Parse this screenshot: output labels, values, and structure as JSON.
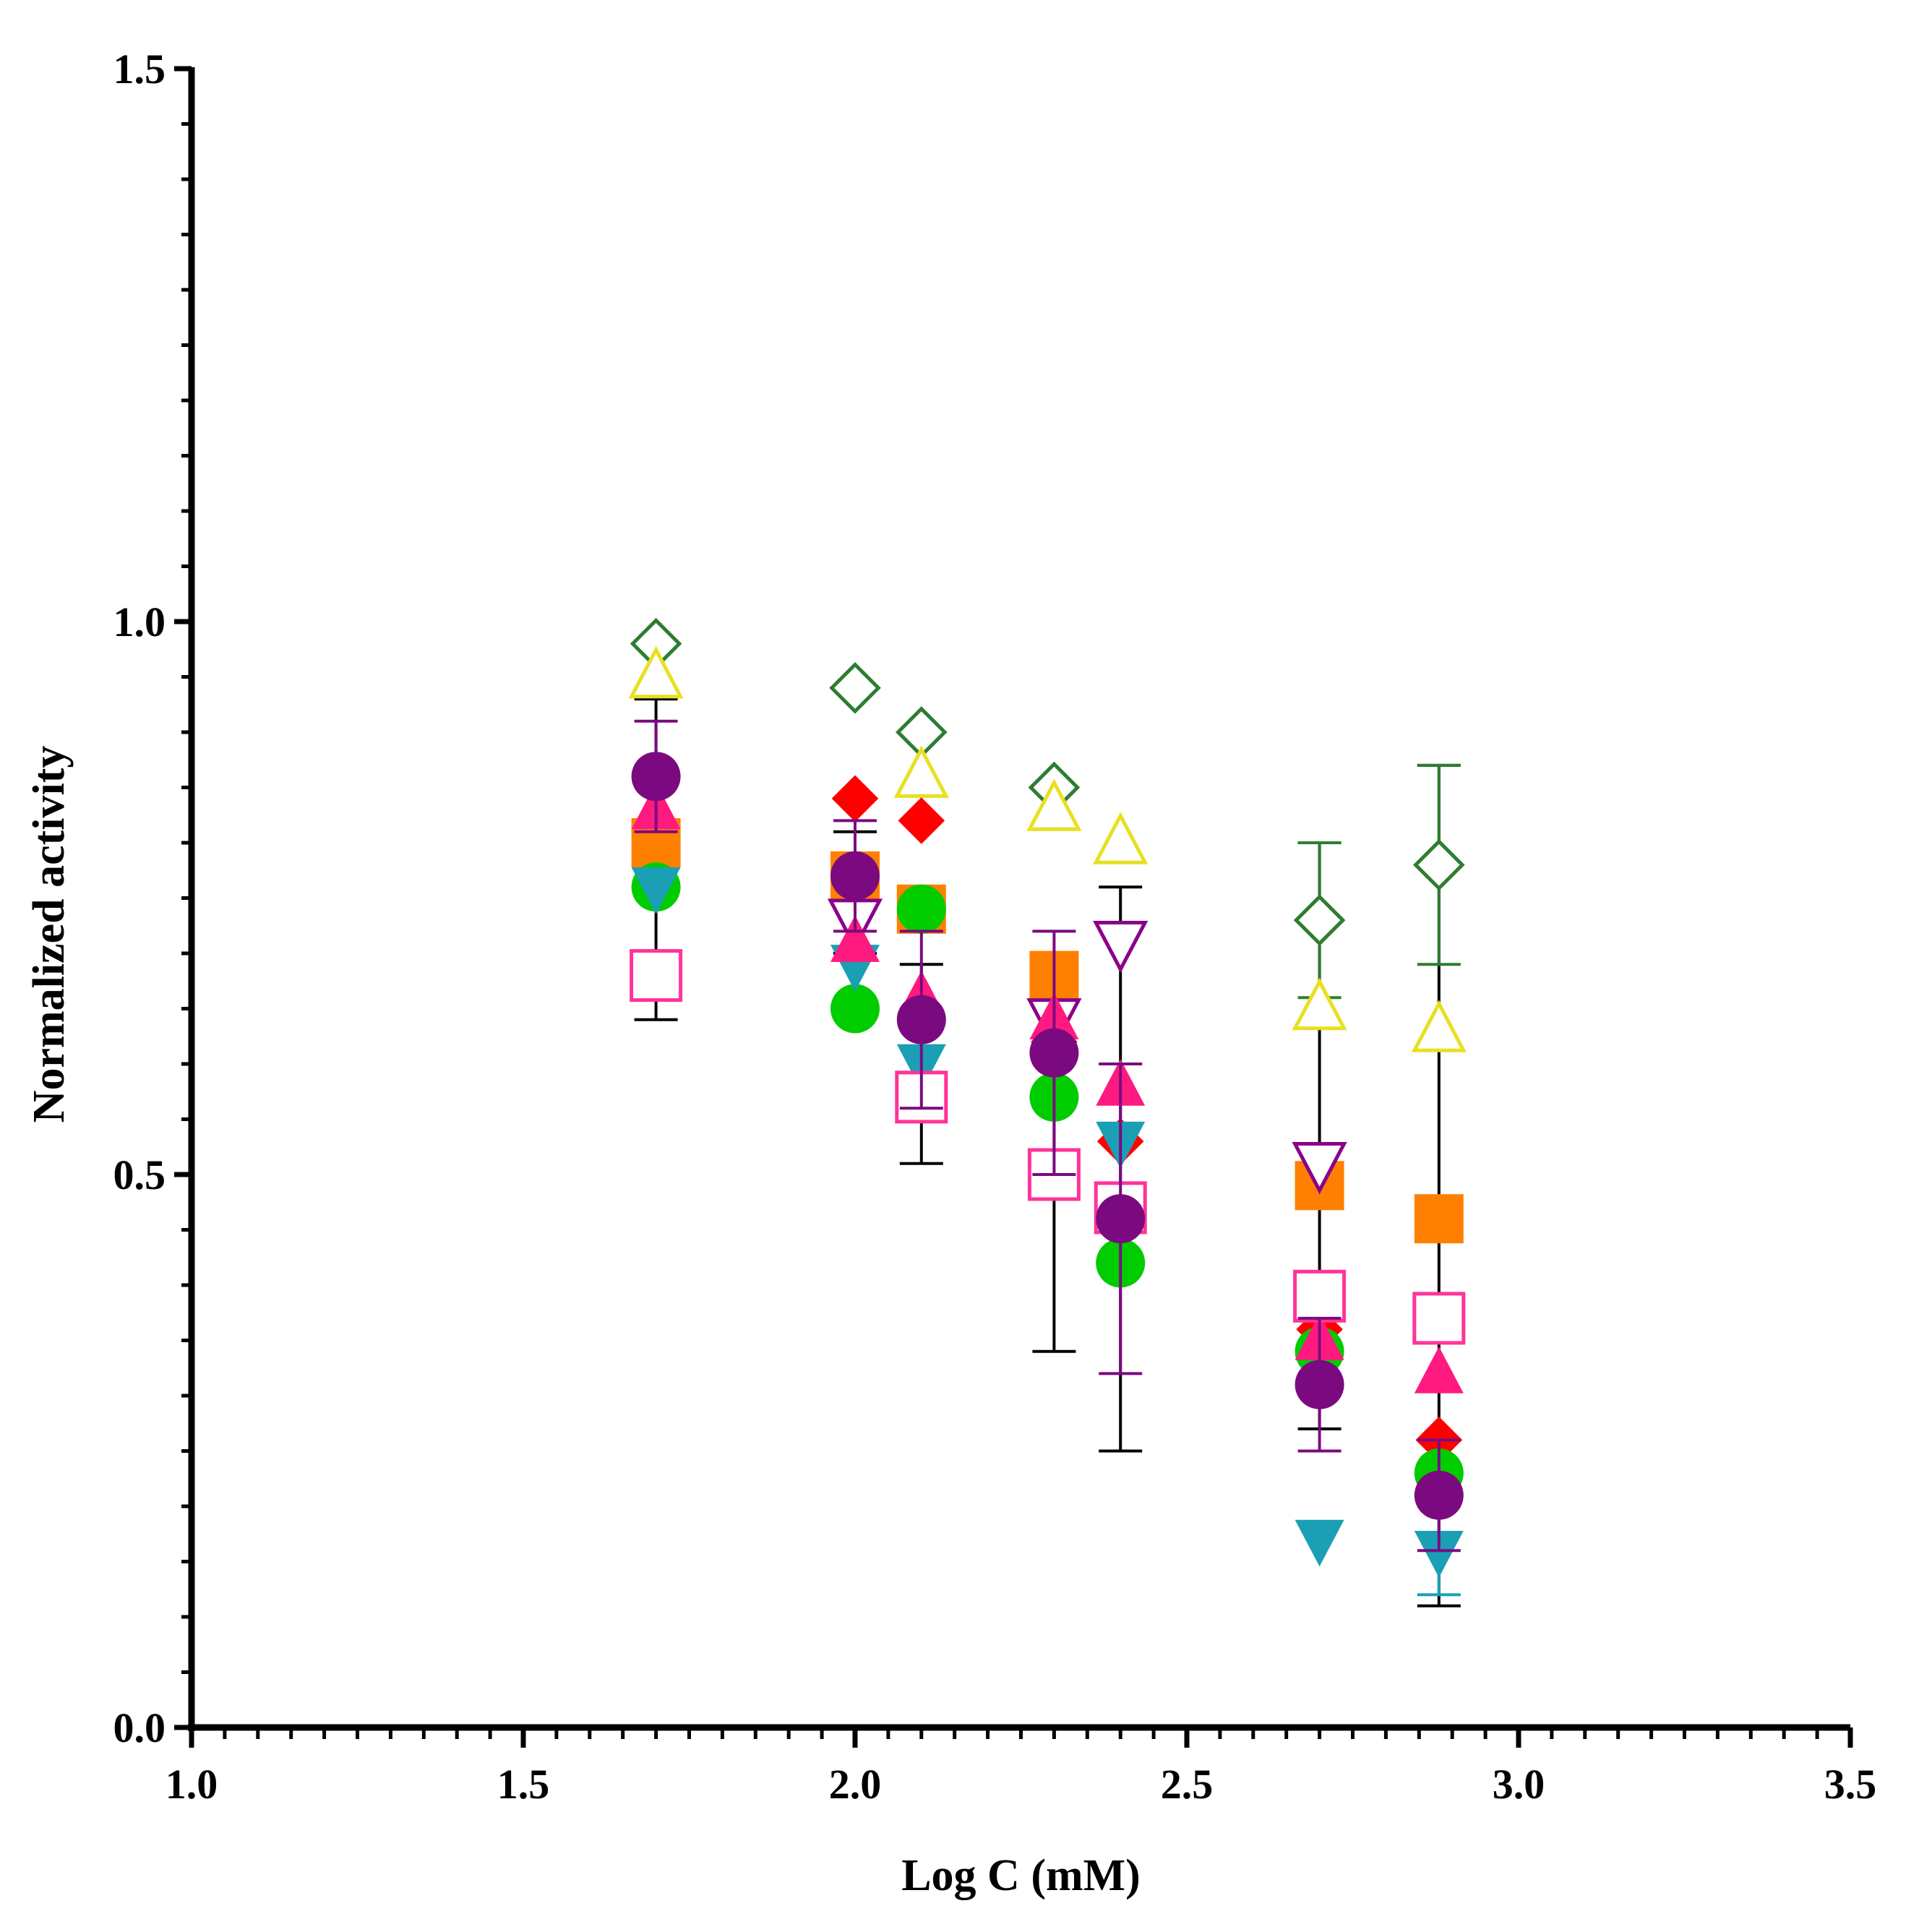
{
  "chart_data": {
    "type": "scatter",
    "xlabel": "Log C (mM)",
    "ylabel": "Normalized activity",
    "xlim": [
      1.0,
      3.5
    ],
    "ylim": [
      0.0,
      1.5
    ],
    "xticks": [
      "1.0",
      "1.5",
      "2.0",
      "2.5",
      "3.0",
      "3.5"
    ],
    "yticks": [
      "0.0",
      "0.5",
      "1.0",
      "1.5"
    ],
    "grid": false,
    "legend": "none",
    "series": [
      {
        "marker": "diamond-open",
        "color": "#2e7d32",
        "x": [
          1.7,
          2.0,
          2.1,
          2.3,
          2.7,
          2.88
        ],
        "y": [
          0.98,
          0.94,
          0.9,
          0.85,
          0.73,
          0.78
        ],
        "err": [
          0,
          0,
          0,
          0,
          0.07,
          0.09
        ]
      },
      {
        "marker": "triangle-up-open",
        "color": "#e8e020",
        "x": [
          1.7,
          2.1,
          2.3,
          2.4,
          2.7,
          2.88
        ],
        "y": [
          0.95,
          0.86,
          0.83,
          0.8,
          0.65,
          0.63
        ],
        "err": [
          0,
          0,
          0,
          0,
          0,
          0
        ]
      },
      {
        "marker": "diamond",
        "color": "#ff0000",
        "x": [
          1.7,
          2.0,
          2.1,
          2.3,
          2.4,
          2.7,
          2.88
        ],
        "y": [
          0.86,
          0.84,
          0.82,
          0.62,
          0.53,
          0.36,
          0.26
        ],
        "err": [
          0,
          0,
          0,
          0,
          0,
          0,
          0
        ]
      },
      {
        "marker": "square",
        "color": "#ff8000",
        "x": [
          1.7,
          2.0,
          2.1,
          2.3,
          2.7,
          2.88
        ],
        "y": [
          0.8,
          0.77,
          0.74,
          0.68,
          0.49,
          0.46
        ],
        "err": [
          0,
          0,
          0,
          0,
          0,
          0
        ]
      },
      {
        "marker": "circle",
        "color": "#00cc00",
        "x": [
          1.7,
          2.0,
          2.1,
          2.3,
          2.4,
          2.7,
          2.88
        ],
        "y": [
          0.76,
          0.65,
          0.74,
          0.57,
          0.42,
          0.34,
          0.23
        ],
        "err": [
          0,
          0,
          0,
          0,
          0,
          0,
          0
        ]
      },
      {
        "marker": "triangle-down",
        "color": "#1a9fb5",
        "x": [
          1.7,
          2.0,
          2.1,
          2.4,
          2.7,
          2.88
        ],
        "y": [
          0.76,
          0.69,
          0.6,
          0.53,
          0.17,
          0.16
        ],
        "err": [
          0,
          0,
          0,
          0,
          0,
          0.04
        ]
      },
      {
        "marker": "triangle-down-open",
        "color": "#8b008b",
        "x": [
          2.0,
          2.3,
          2.4,
          2.7
        ],
        "y": [
          0.73,
          0.64,
          0.71,
          0.51
        ],
        "err": [
          0,
          0,
          0,
          0
        ]
      },
      {
        "marker": "triangle-up",
        "color": "#ff1a80",
        "x": [
          1.7,
          2.0,
          2.1,
          2.3,
          2.4,
          2.7,
          2.88
        ],
        "y": [
          0.83,
          0.71,
          0.66,
          0.64,
          0.58,
          0.35,
          0.32
        ],
        "err": [
          0,
          0,
          0,
          0,
          0,
          0,
          0
        ]
      },
      {
        "marker": "square-open",
        "color": "#ff3399",
        "x": [
          1.7,
          2.1,
          2.3,
          2.4,
          2.7,
          2.88
        ],
        "y": [
          0.68,
          0.57,
          0.5,
          0.47,
          0.39,
          0.37
        ],
        "err": [
          0,
          0,
          0,
          0,
          0,
          0
        ]
      },
      {
        "marker": "circle",
        "color": "#7b0a80",
        "x": [
          1.7,
          2.0,
          2.1,
          2.3,
          2.4,
          2.7,
          2.88
        ],
        "y": [
          0.86,
          0.77,
          0.64,
          0.61,
          0.46,
          0.31,
          0.21
        ],
        "err": [
          0.05,
          0.05,
          0.08,
          0.11,
          0.14,
          0.06,
          0.05
        ]
      }
    ],
    "errorbars": [
      {
        "x": 1.7,
        "low": 0.64,
        "high": 0.93
      },
      {
        "x": 2.0,
        "low": 0.7,
        "high": 0.81
      },
      {
        "x": 2.1,
        "low": 0.51,
        "high": 0.69
      },
      {
        "x": 2.3,
        "low": 0.34,
        "high": 0.7
      },
      {
        "x": 2.4,
        "low": 0.25,
        "high": 0.76
      },
      {
        "x": 2.7,
        "low": 0.27,
        "high": 0.8
      },
      {
        "x": 2.88,
        "low": 0.11,
        "high": 0.87
      }
    ]
  }
}
